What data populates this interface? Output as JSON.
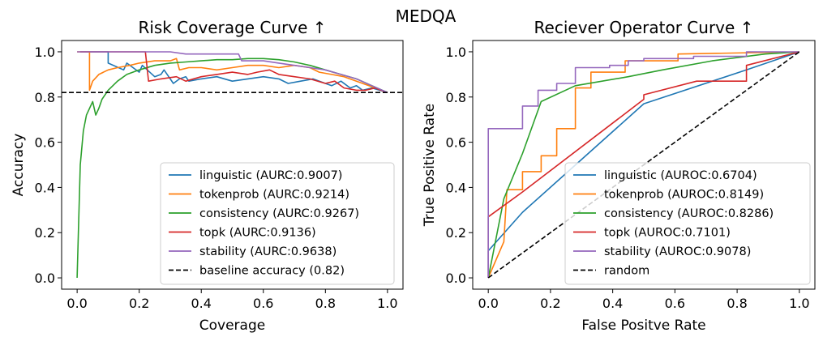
{
  "suptitle": "MEDQA",
  "colors": {
    "linguistic": "#1f77b4",
    "tokenprob": "#ff7f0e",
    "consistency": "#2ca02c",
    "topk": "#d62728",
    "stability": "#9467bd",
    "reference": "#000000"
  },
  "chart_data": [
    {
      "type": "line",
      "title": "Risk Coverage Curve ↑",
      "xlabel": "Coverage",
      "ylabel": "Accuracy",
      "xlim": [
        -0.05,
        1.05
      ],
      "ylim": [
        -0.05,
        1.05
      ],
      "xticks": [
        0.0,
        0.2,
        0.4,
        0.6,
        0.8,
        1.0
      ],
      "yticks": [
        0.0,
        0.2,
        0.4,
        0.6,
        0.8,
        1.0
      ],
      "xticklabels": [
        "0.0",
        "0.2",
        "0.4",
        "0.6",
        "0.8",
        "1.0"
      ],
      "yticklabels": [
        "0.0",
        "0.2",
        "0.4",
        "0.6",
        "0.8",
        "1.0"
      ],
      "legend_position": "lower-right",
      "series": [
        {
          "name": "linguistic (AURC:0.9007)",
          "color_key": "linguistic",
          "x": [
            0.01,
            0.1,
            0.1,
            0.15,
            0.16,
            0.2,
            0.21,
            0.25,
            0.27,
            0.28,
            0.3,
            0.31,
            0.33,
            0.35,
            0.36,
            0.4,
            0.45,
            0.5,
            0.55,
            0.6,
            0.65,
            0.68,
            0.72,
            0.76,
            0.8,
            0.82,
            0.85,
            0.88,
            0.9,
            0.92,
            0.95,
            1.0
          ],
          "y": [
            1.0,
            1.0,
            0.95,
            0.92,
            0.95,
            0.91,
            0.94,
            0.89,
            0.9,
            0.92,
            0.88,
            0.86,
            0.88,
            0.89,
            0.87,
            0.88,
            0.89,
            0.87,
            0.88,
            0.89,
            0.88,
            0.86,
            0.87,
            0.88,
            0.86,
            0.85,
            0.87,
            0.84,
            0.85,
            0.83,
            0.84,
            0.82
          ]
        },
        {
          "name": "tokenprob (AURC:0.9214)",
          "color_key": "tokenprob",
          "x": [
            0.0,
            0.04,
            0.04,
            0.05,
            0.07,
            0.1,
            0.13,
            0.17,
            0.2,
            0.25,
            0.3,
            0.32,
            0.33,
            0.36,
            0.4,
            0.45,
            0.5,
            0.55,
            0.6,
            0.65,
            0.7,
            0.75,
            0.78,
            0.82,
            0.86,
            0.9,
            0.94,
            1.0
          ],
          "y": [
            1.0,
            1.0,
            0.83,
            0.87,
            0.9,
            0.92,
            0.93,
            0.94,
            0.95,
            0.96,
            0.96,
            0.97,
            0.92,
            0.93,
            0.93,
            0.92,
            0.93,
            0.94,
            0.94,
            0.93,
            0.94,
            0.93,
            0.91,
            0.9,
            0.89,
            0.87,
            0.85,
            0.82
          ]
        },
        {
          "name": "consistency (AURC:0.9267)",
          "color_key": "consistency",
          "x": [
            0.0,
            0.01,
            0.02,
            0.03,
            0.05,
            0.06,
            0.07,
            0.08,
            0.1,
            0.13,
            0.16,
            0.2,
            0.25,
            0.3,
            0.35,
            0.4,
            0.45,
            0.5,
            0.55,
            0.6,
            0.65,
            0.7,
            0.75,
            0.8,
            0.85,
            0.9,
            0.95,
            1.0
          ],
          "y": [
            0.0,
            0.5,
            0.65,
            0.72,
            0.78,
            0.72,
            0.75,
            0.79,
            0.83,
            0.87,
            0.9,
            0.92,
            0.94,
            0.95,
            0.955,
            0.96,
            0.965,
            0.965,
            0.97,
            0.97,
            0.965,
            0.955,
            0.94,
            0.92,
            0.9,
            0.88,
            0.85,
            0.82
          ]
        },
        {
          "name": "topk (AURC:0.9136)",
          "color_key": "topk",
          "x": [
            0.01,
            0.22,
            0.23,
            0.27,
            0.32,
            0.35,
            0.4,
            0.45,
            0.5,
            0.55,
            0.58,
            0.62,
            0.65,
            0.7,
            0.75,
            0.8,
            0.83,
            0.86,
            0.9,
            0.93,
            0.96,
            1.0
          ],
          "y": [
            1.0,
            1.0,
            0.87,
            0.88,
            0.89,
            0.87,
            0.89,
            0.9,
            0.91,
            0.9,
            0.91,
            0.92,
            0.9,
            0.89,
            0.88,
            0.86,
            0.87,
            0.84,
            0.83,
            0.83,
            0.84,
            0.82
          ]
        },
        {
          "name": "stability (AURC:0.9638)",
          "color_key": "stability",
          "x": [
            0.0,
            0.3,
            0.35,
            0.4,
            0.45,
            0.52,
            0.53,
            0.6,
            0.65,
            0.7,
            0.75,
            0.8,
            0.85,
            0.9,
            0.95,
            1.0
          ],
          "y": [
            1.0,
            1.0,
            0.99,
            0.99,
            0.99,
            0.99,
            0.96,
            0.96,
            0.95,
            0.94,
            0.93,
            0.92,
            0.9,
            0.88,
            0.85,
            0.82
          ]
        },
        {
          "name": "baseline accuracy (0.82)",
          "color_key": "reference",
          "dashed": true,
          "full_width": true,
          "x": [
            -0.05,
            1.05
          ],
          "y": [
            0.82,
            0.82
          ]
        }
      ]
    },
    {
      "type": "line",
      "title": "Reciever Operator Curve ↑",
      "xlabel": "False Positve Rate",
      "ylabel": "True Positive Rate",
      "xlim": [
        -0.05,
        1.05
      ],
      "ylim": [
        -0.05,
        1.05
      ],
      "xticks": [
        0.0,
        0.2,
        0.4,
        0.6,
        0.8,
        1.0
      ],
      "yticks": [
        0.0,
        0.2,
        0.4,
        0.6,
        0.8,
        1.0
      ],
      "xticklabels": [
        "0.0",
        "0.2",
        "0.4",
        "0.6",
        "0.8",
        "1.0"
      ],
      "yticklabels": [
        "0.0",
        "0.2",
        "0.4",
        "0.6",
        "0.8",
        "1.0"
      ],
      "legend_position": "lower-right",
      "series": [
        {
          "name": "linguistic (AUROC:0.6704)",
          "color_key": "linguistic",
          "x": [
            0.0,
            0.0,
            0.11,
            0.5,
            0.83,
            1.0
          ],
          "y": [
            0.0,
            0.12,
            0.29,
            0.77,
            0.92,
            1.0
          ]
        },
        {
          "name": "tokenprob (AUROC:0.8149)",
          "color_key": "tokenprob",
          "x": [
            0.0,
            0.05,
            0.06,
            0.11,
            0.11,
            0.17,
            0.17,
            0.22,
            0.22,
            0.28,
            0.28,
            0.33,
            0.33,
            0.44,
            0.44,
            0.61,
            0.61,
            1.0
          ],
          "y": [
            0.0,
            0.16,
            0.39,
            0.39,
            0.47,
            0.47,
            0.54,
            0.54,
            0.66,
            0.66,
            0.84,
            0.84,
            0.91,
            0.91,
            0.96,
            0.96,
            0.99,
            1.0
          ],
          "step": true
        },
        {
          "name": "consistency (AUROC:0.8286)",
          "color_key": "consistency",
          "x": [
            0.0,
            0.05,
            0.11,
            0.17,
            0.28,
            0.45,
            0.56,
            0.72,
            0.89,
            1.0
          ],
          "y": [
            0.0,
            0.35,
            0.55,
            0.78,
            0.85,
            0.89,
            0.92,
            0.96,
            0.99,
            1.0
          ]
        },
        {
          "name": "topk (AUROC:0.7101)",
          "color_key": "topk",
          "x": [
            0.0,
            0.0,
            0.11,
            0.5,
            0.5,
            0.67,
            0.83,
            0.83,
            1.0
          ],
          "y": [
            0.0,
            0.27,
            0.38,
            0.79,
            0.81,
            0.87,
            0.87,
            0.94,
            1.0
          ]
        },
        {
          "name": "stability (AUROC:0.9078)",
          "color_key": "stability",
          "x": [
            0.0,
            0.0,
            0.0,
            0.11,
            0.11,
            0.16,
            0.16,
            0.22,
            0.22,
            0.28,
            0.28,
            0.39,
            0.39,
            0.45,
            0.45,
            0.5,
            0.5,
            0.66,
            0.66,
            0.72,
            0.72,
            0.83,
            0.83,
            1.0
          ],
          "y": [
            0.0,
            0.27,
            0.66,
            0.66,
            0.76,
            0.76,
            0.83,
            0.83,
            0.86,
            0.86,
            0.93,
            0.93,
            0.94,
            0.94,
            0.96,
            0.96,
            0.97,
            0.97,
            0.98,
            0.98,
            0.98,
            0.98,
            1.0,
            1.0
          ]
        },
        {
          "name": "random",
          "color_key": "reference",
          "dashed": true,
          "x": [
            0.0,
            1.0
          ],
          "y": [
            0.0,
            1.0
          ]
        }
      ]
    }
  ]
}
